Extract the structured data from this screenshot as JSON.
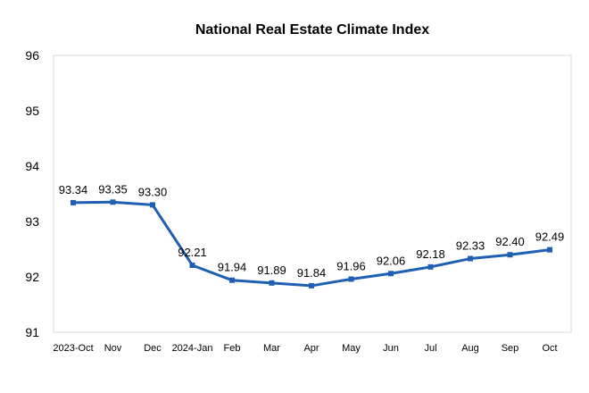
{
  "chart_data": {
    "type": "line",
    "title": "National Real Estate Climate Index",
    "xlabel": "",
    "ylabel": "",
    "categories": [
      "2023-Oct",
      "Nov",
      "Dec",
      "2024-Jan",
      "Feb",
      "Mar",
      "Apr",
      "May",
      "Jun",
      "Jul",
      "Aug",
      "Sep",
      "Oct"
    ],
    "series": [
      {
        "values": [
          93.34,
          93.35,
          93.3,
          92.21,
          91.94,
          91.89,
          91.84,
          91.96,
          92.06,
          92.18,
          92.33,
          92.4,
          92.49
        ],
        "labels": [
          "93.34",
          "93.35",
          "93.30",
          "92.21",
          "91.94",
          "91.89",
          "91.84",
          "91.96",
          "92.06",
          "92.18",
          "92.33",
          "92.40",
          "92.49"
        ],
        "color": "#1f5fb4",
        "marker": "square"
      }
    ],
    "ylim": [
      91,
      96
    ],
    "yticks": [
      "91",
      "92",
      "93",
      "94",
      "95",
      "96"
    ],
    "grid": false,
    "legend": "none"
  }
}
